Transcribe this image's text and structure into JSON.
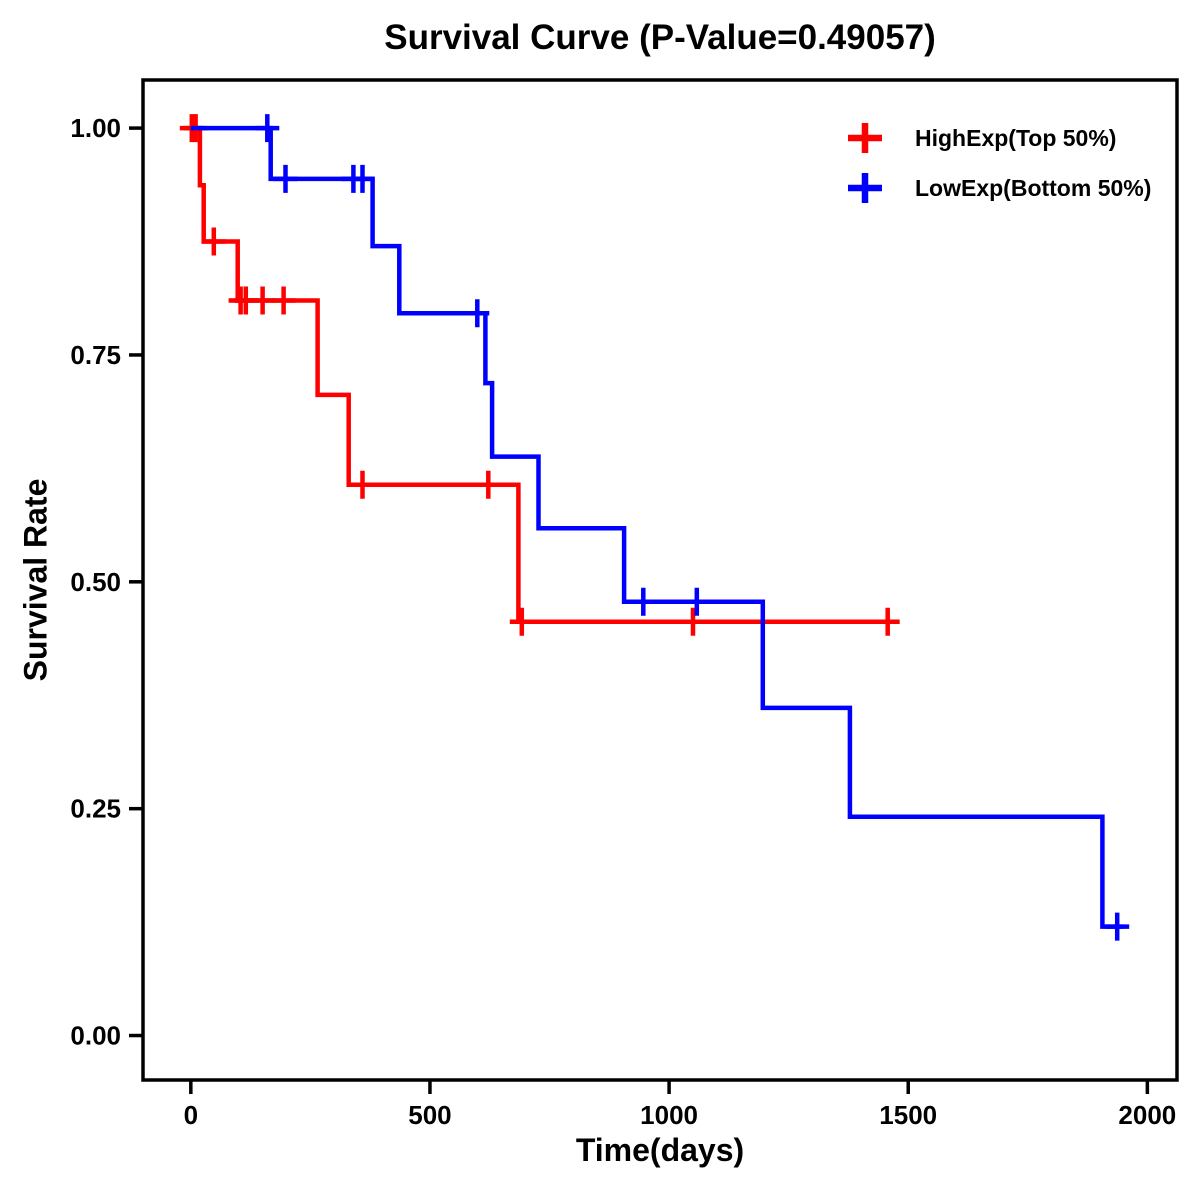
{
  "chart_data": {
    "type": "line",
    "subtype": "kaplan_meier_step_survival",
    "title": "Survival Curve (P-Value=0.49057)",
    "p_value": "0.49057",
    "xlabel": "Time(days)",
    "ylabel": "Survival Rate",
    "grid": false,
    "legend_position": "top-right-inside",
    "x_axis": {
      "min": -100,
      "max": 2062,
      "ticks": [
        0,
        500,
        1000,
        1500,
        2000
      ],
      "tick_labels": [
        "0",
        "500",
        "1000",
        "1500",
        "2000"
      ]
    },
    "y_axis": {
      "min": -0.049,
      "max": 1.053,
      "ticks": [
        0,
        0.25,
        0.5,
        0.75,
        1
      ],
      "tick_labels": [
        "0.00",
        "0.25",
        "0.50",
        "0.75",
        "1.00"
      ]
    },
    "series": [
      {
        "id": "highexp",
        "name": "HighExp(Top 50%)",
        "color": "#ff0000",
        "steps": [
          [
            0,
            1.0
          ],
          [
            19,
            0.937
          ],
          [
            27,
            0.875
          ],
          [
            98,
            0.81
          ],
          [
            265,
            0.706
          ],
          [
            330,
            0.607
          ],
          [
            685,
            0.456
          ],
          [
            1460,
            0.456
          ]
        ],
        "censors": [
          [
            2,
            1.0
          ],
          [
            10,
            1.0
          ],
          [
            48,
            0.875
          ],
          [
            104,
            0.81
          ],
          [
            115,
            0.81
          ],
          [
            150,
            0.81
          ],
          [
            194,
            0.81
          ],
          [
            359,
            0.607
          ],
          [
            622,
            0.607
          ],
          [
            692,
            0.456
          ],
          [
            1050,
            0.456
          ],
          [
            1457,
            0.456
          ]
        ]
      },
      {
        "id": "lowexp",
        "name": "LowExp(Bottom 50%)",
        "color": "#0000ff",
        "steps": [
          [
            0,
            1.0
          ],
          [
            167,
            0.944
          ],
          [
            380,
            0.87
          ],
          [
            436,
            0.796
          ],
          [
            616,
            0.719
          ],
          [
            630,
            0.638
          ],
          [
            727,
            0.559
          ],
          [
            906,
            0.478
          ],
          [
            1196,
            0.361
          ],
          [
            1378,
            0.241
          ],
          [
            1906,
            0.12
          ],
          [
            1950,
            0.12
          ]
        ],
        "censors": [
          [
            160,
            1.0
          ],
          [
            198,
            0.944
          ],
          [
            340,
            0.944
          ],
          [
            359,
            0.944
          ],
          [
            599,
            0.796
          ],
          [
            946,
            0.478
          ],
          [
            1058,
            0.478
          ],
          [
            1937,
            0.12
          ]
        ]
      }
    ]
  }
}
